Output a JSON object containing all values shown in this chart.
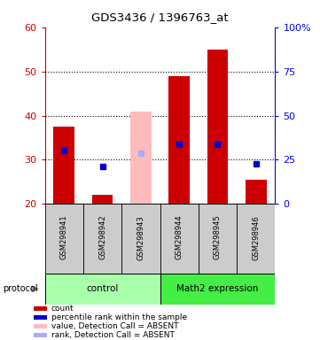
{
  "title": "GDS3436 / 1396763_at",
  "samples": [
    "GSM298941",
    "GSM298942",
    "GSM298943",
    "GSM298944",
    "GSM298945",
    "GSM298946"
  ],
  "count_values": [
    37.5,
    22.0,
    null,
    49.0,
    55.0,
    25.5
  ],
  "absent_values": [
    null,
    null,
    41.0,
    null,
    null,
    null
  ],
  "rank_values": [
    32.0,
    28.5,
    null,
    33.5,
    33.5,
    29.0
  ],
  "absent_rank_values": [
    null,
    null,
    31.5,
    null,
    null,
    null
  ],
  "y_min": 20,
  "y_max": 60,
  "y_ticks": [
    20,
    30,
    40,
    50,
    60
  ],
  "y2_ticks": [
    0,
    25,
    50,
    75,
    100
  ],
  "y2_labels": [
    "0",
    "25",
    "50",
    "75",
    "100%"
  ],
  "groups": [
    {
      "label": "control",
      "indices": [
        0,
        1,
        2
      ],
      "color": "#aaffaa"
    },
    {
      "label": "Math2 expression",
      "indices": [
        3,
        4,
        5
      ],
      "color": "#44ee44"
    }
  ],
  "bar_width": 0.55,
  "count_color": "#cc0000",
  "absent_bar_color": "#ffbbbb",
  "rank_color": "#0000cc",
  "absent_rank_color": "#aaaaff",
  "legend_items": [
    {
      "color": "#cc0000",
      "label": "count"
    },
    {
      "color": "#0000cc",
      "label": "percentile rank within the sample"
    },
    {
      "color": "#ffbbbb",
      "label": "value, Detection Call = ABSENT"
    },
    {
      "color": "#aaaaff",
      "label": "rank, Detection Call = ABSENT"
    }
  ]
}
